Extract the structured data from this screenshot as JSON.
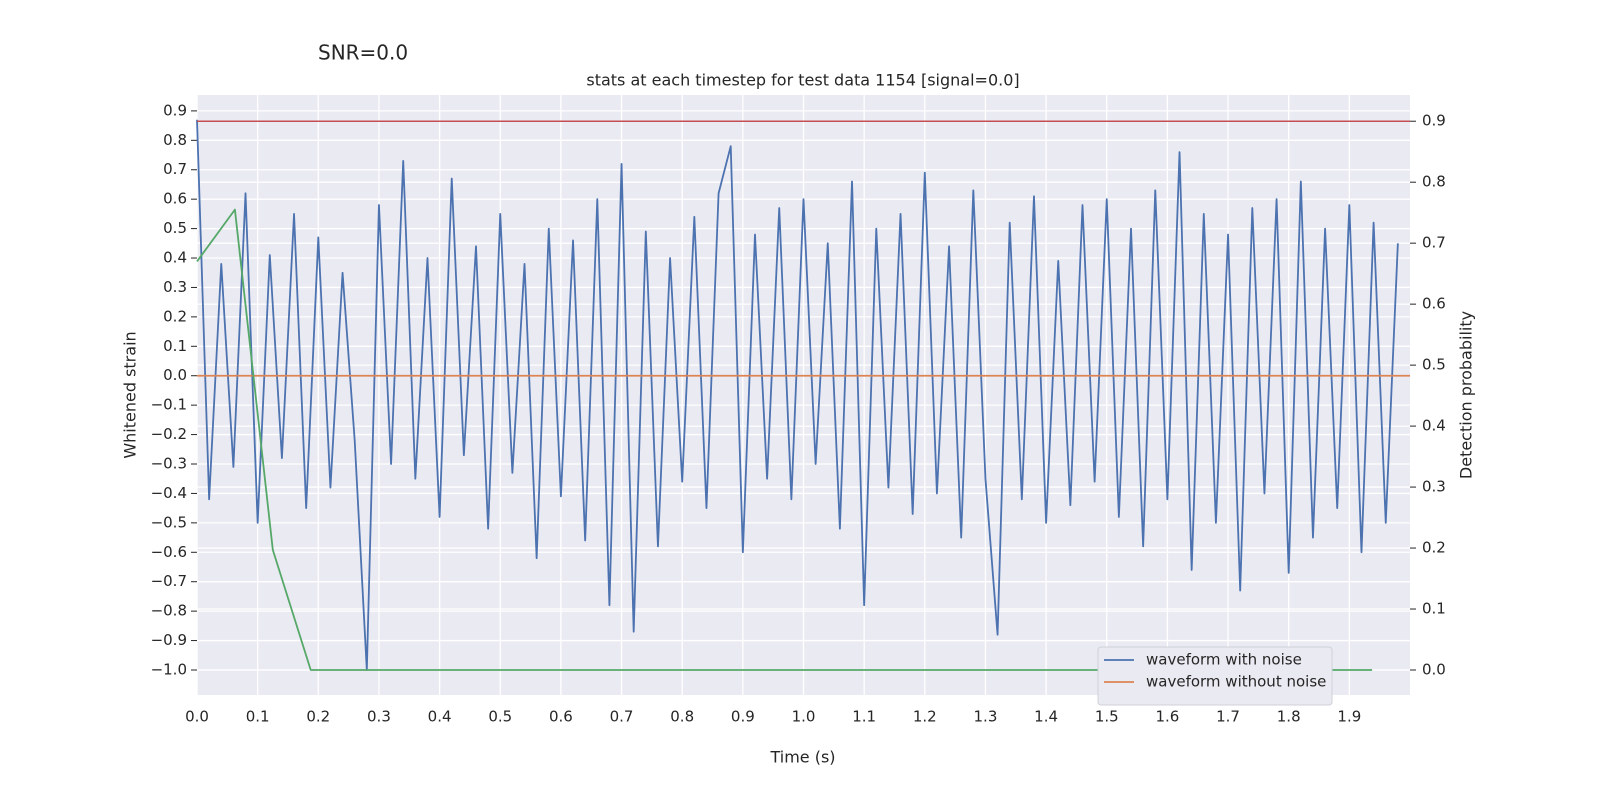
{
  "chart_data": {
    "type": "line",
    "suptitle": "SNR=0.0",
    "title": "stats at each timestep for test data 1154 [signal=0.0]",
    "xlabel": "Time (s)",
    "ylabel": "Whitened strain",
    "y2label": "Detection probability",
    "xlim": [
      0,
      2.0
    ],
    "ylim": [
      -1.085,
      0.954
    ],
    "y2lim": [
      -0.041,
      0.943
    ],
    "xticks": [
      {
        "value": 0,
        "label": "0.0"
      },
      0.1,
      0.2,
      0.3,
      0.4,
      0.5,
      0.6,
      0.7,
      0.8,
      0.9,
      {
        "value": 1,
        "label": "1.0"
      },
      1.1,
      1.2,
      1.3,
      1.4,
      1.5,
      1.6,
      1.7,
      1.8,
      1.9
    ],
    "yticks": [
      {
        "value": -1,
        "label": "−1.0"
      },
      {
        "value": -0.9,
        "label": "−0.9"
      },
      {
        "value": -0.8,
        "label": "−0.8"
      },
      {
        "value": -0.7,
        "label": "−0.7"
      },
      {
        "value": -0.6,
        "label": "−0.6"
      },
      {
        "value": -0.5,
        "label": "−0.5"
      },
      {
        "value": -0.4,
        "label": "−0.4"
      },
      {
        "value": -0.3,
        "label": "−0.3"
      },
      {
        "value": -0.2,
        "label": "−0.2"
      },
      {
        "value": -0.1,
        "label": "−0.1"
      },
      {
        "value": 0,
        "label": "0.0"
      },
      0.1,
      0.2,
      0.3,
      0.4,
      0.5,
      0.6,
      0.7,
      0.8,
      0.9
    ],
    "y2ticks": [
      {
        "value": 0,
        "label": "0.0"
      },
      0.1,
      0.2,
      0.3,
      0.4,
      0.5,
      0.6,
      0.7,
      0.8,
      0.9
    ],
    "grid": true,
    "legend": "lower right",
    "hlines": [
      {
        "value": 0.9,
        "axis": "y2",
        "color": "#c44e52"
      }
    ],
    "series": [
      {
        "name": "waveform with noise",
        "color": "#4c72b0",
        "x": [
          0,
          0.02,
          0.04,
          0.06,
          0.08,
          0.1,
          0.12,
          0.14,
          0.16,
          0.18,
          0.2,
          0.22,
          0.24,
          0.26,
          0.28,
          0.3,
          0.32,
          0.34,
          0.36,
          0.38,
          0.4,
          0.42,
          0.44,
          0.46,
          0.48,
          0.5,
          0.52,
          0.54,
          0.56,
          0.58,
          0.6,
          0.62,
          0.64,
          0.66,
          0.68,
          0.7,
          0.72,
          0.74,
          0.76,
          0.78,
          0.8,
          0.82,
          0.84,
          0.86,
          0.88,
          0.9,
          0.92,
          0.94,
          0.96,
          0.98,
          1,
          1.02,
          1.04,
          1.06,
          1.08,
          1.1,
          1.12,
          1.14,
          1.16,
          1.18,
          1.2,
          1.22,
          1.24,
          1.26,
          1.28,
          1.3,
          1.32,
          1.34,
          1.36,
          1.38,
          1.4,
          1.42,
          1.44,
          1.46,
          1.48,
          1.5,
          1.52,
          1.54,
          1.56,
          1.58,
          1.6,
          1.62,
          1.64,
          1.66,
          1.68,
          1.7,
          1.72,
          1.74,
          1.76,
          1.78,
          1.8,
          1.82,
          1.84,
          1.86,
          1.88,
          1.9,
          1.92,
          1.94,
          1.96,
          1.98
        ],
        "values": [
          0.87,
          -0.42,
          0.38,
          -0.31,
          0.62,
          -0.5,
          0.41,
          -0.28,
          0.55,
          -0.45,
          0.47,
          -0.38,
          0.35,
          -0.22,
          -1.0,
          0.58,
          -0.3,
          0.73,
          -0.35,
          0.4,
          -0.48,
          0.67,
          -0.27,
          0.44,
          -0.52,
          0.55,
          -0.33,
          0.38,
          -0.62,
          0.5,
          -0.41,
          0.46,
          -0.56,
          0.6,
          -0.78,
          0.72,
          -0.87,
          0.49,
          -0.58,
          0.4,
          -0.36,
          0.54,
          -0.45,
          0.62,
          0.78,
          -0.6,
          0.48,
          -0.35,
          0.57,
          -0.42,
          0.6,
          -0.3,
          0.45,
          -0.52,
          0.66,
          -0.78,
          0.5,
          -0.38,
          0.55,
          -0.47,
          0.69,
          -0.4,
          0.44,
          -0.55,
          0.63,
          -0.35,
          -0.88,
          0.52,
          -0.42,
          0.61,
          -0.5,
          0.39,
          -0.44,
          0.58,
          -0.36,
          0.6,
          -0.48,
          0.5,
          -0.58,
          0.63,
          -0.42,
          0.76,
          -0.66,
          0.55,
          -0.5,
          0.48,
          -0.73,
          0.57,
          -0.4,
          0.6,
          -0.67,
          0.66,
          -0.55,
          0.5,
          -0.45,
          0.58,
          -0.6,
          0.52,
          -0.5,
          0.45
        ]
      },
      {
        "name": "waveform without noise",
        "color": "#dd8452",
        "x": [
          0,
          2.0
        ],
        "values": [
          0,
          0
        ]
      },
      {
        "color": "#55a868",
        "axis": "y2",
        "x": [
          0,
          0.0625,
          0.125,
          0.1875,
          0.25,
          0.3125,
          0.375,
          0.4375,
          0.5,
          0.5625,
          0.625,
          0.6875,
          0.75,
          0.8125,
          0.875,
          0.9375,
          1,
          1.0625,
          1.125,
          1.1875,
          1.25,
          1.3125,
          1.375,
          1.4375,
          1.5,
          1.5625,
          1.625,
          1.6875,
          1.75,
          1.8125,
          1.875,
          1.9375
        ],
        "values": [
          0.67,
          0.755,
          0.197,
          0,
          0,
          0,
          0,
          0,
          0,
          0,
          0,
          0,
          0,
          0,
          0,
          0,
          0,
          0,
          0,
          0,
          0,
          0,
          0,
          0,
          0,
          0,
          0,
          0,
          0,
          0,
          0,
          0
        ]
      }
    ]
  }
}
